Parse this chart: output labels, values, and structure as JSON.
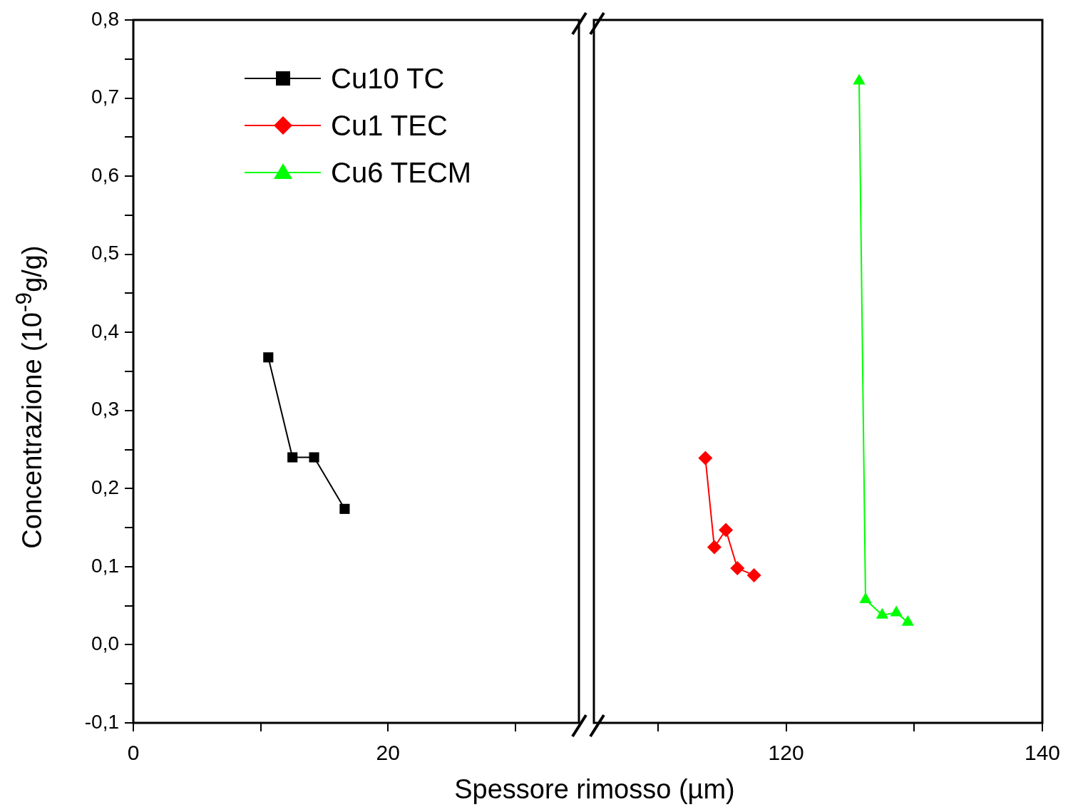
{
  "chart_data": [
    {
      "type": "line",
      "xlabel": "Spessore rimosso (µm)",
      "ylabel": "Concentrazione (10$^{-9}$g/g)",
      "xlim": [
        0,
        35
      ],
      "xticks": [
        0,
        {
          "value": 10,
          "label": null
        },
        20,
        {
          "value": 30,
          "label": null
        }
      ],
      "ylim": [
        -0.1,
        0.8
      ],
      "yticks": [
        {
          "value": -0.1,
          "label": "-0,1"
        },
        {
          "value": -0.05,
          "label": null
        },
        {
          "value": 0,
          "label": "0,0"
        },
        {
          "value": 0.05,
          "label": null
        },
        {
          "value": 0.1,
          "label": "0,1"
        },
        {
          "value": 0.15,
          "label": null
        },
        {
          "value": 0.2,
          "label": "0,2"
        },
        {
          "value": 0.25,
          "label": null
        },
        {
          "value": 0.3,
          "label": "0,3"
        },
        {
          "value": 0.35,
          "label": null
        },
        {
          "value": 0.4,
          "label": "0,4"
        },
        {
          "value": 0.45,
          "label": null
        },
        {
          "value": 0.5,
          "label": "0,5"
        },
        {
          "value": 0.55,
          "label": null
        },
        {
          "value": 0.6,
          "label": "0,6"
        },
        {
          "value": 0.65,
          "label": null
        },
        {
          "value": 0.7,
          "label": "0,7"
        },
        {
          "value": 0.75,
          "label": null
        },
        {
          "value": 0.8,
          "label": "0,8"
        }
      ],
      "grid": false,
      "legend": "top left",
      "line_style": "solid",
      "series": [
        {
          "name": "Cu10 TC",
          "color": "#000000",
          "marker": "square",
          "x": [
            10.6,
            12.5,
            14.2,
            16.6
          ],
          "values": [
            0.368,
            0.24,
            0.24,
            0.174
          ]
        }
      ]
    },
    {
      "type": "line",
      "xlim": [
        105,
        140
      ],
      "xticks": [
        {
          "value": 110,
          "label": null
        },
        120,
        {
          "value": 130,
          "label": null
        },
        140
      ],
      "ylim": [
        -0.1,
        0.8
      ],
      "tick_labels": "x",
      "grid": false,
      "legend": "top left",
      "line_style": "solid",
      "series": [
        {
          "name": "Cu1 TEC",
          "color": "#ff0000",
          "marker": "diamond",
          "x": [
            113.7,
            114.4,
            115.3,
            116.2,
            117.5
          ],
          "values": [
            0.239,
            0.125,
            0.147,
            0.098,
            0.089
          ]
        },
        {
          "name": "Cu6 TECM",
          "color": "#00ff00",
          "marker": "triangle",
          "x": [
            125.7,
            126.2,
            127.5,
            128.6,
            129.5
          ],
          "values": [
            0.722,
            0.058,
            0.038,
            0.041,
            0.029
          ]
        }
      ]
    }
  ]
}
